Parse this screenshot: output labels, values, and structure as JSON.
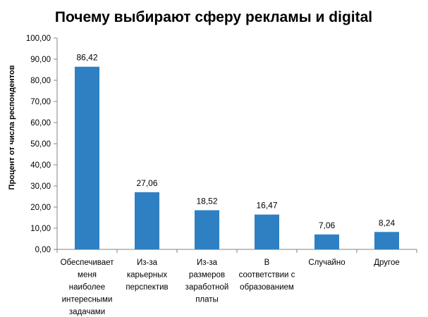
{
  "chart_data": {
    "type": "bar",
    "title": "Почему выбирают сферу рекламы и digital",
    "xlabel": "",
    "ylabel": "Процент от числа  респондентов",
    "ylim": [
      0,
      100
    ],
    "yticks": [
      "0,00",
      "10,00",
      "20,00",
      "30,00",
      "40,00",
      "50,00",
      "60,00",
      "70,00",
      "80,00",
      "90,00",
      "100,00"
    ],
    "categories": [
      "Обеспечивает меня наиболее интересными задачами",
      "Из-за карьерных перспектив",
      "Из-за размеров заработной платы",
      "В соответствии с образованием",
      "Случайно",
      "Другое"
    ],
    "category_lines": [
      [
        "Обеспечивает",
        "меня",
        "наиболее",
        "интересными",
        "задачами"
      ],
      [
        "Из-за",
        "карьерных",
        "перспектив"
      ],
      [
        "Из-за",
        "размеров",
        "заработной",
        "платы"
      ],
      [
        "В",
        "соответствии с",
        "образованием"
      ],
      [
        "Случайно"
      ],
      [
        "Другое"
      ]
    ],
    "values": [
      86.42,
      27.06,
      18.52,
      16.47,
      7.06,
      8.24
    ],
    "data_labels": [
      "86,42",
      "27,06",
      "18,52",
      "16,47",
      "7,06",
      "8,24"
    ],
    "bar_color": "#2e80c3",
    "grid": false,
    "legend": "none"
  }
}
